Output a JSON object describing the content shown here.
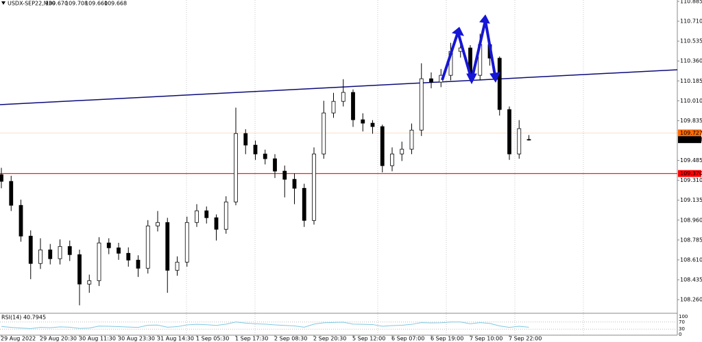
{
  "chart_data": {
    "type": "candlestick",
    "title": "USDX-SEP22,M30",
    "quote": [
      "109.670",
      "109.708",
      "109.660",
      "109.668"
    ],
    "categories": [
      "29 Aug 2022",
      null,
      null,
      null,
      "29 Aug 20:30",
      null,
      null,
      null,
      "30 Aug 11:30",
      null,
      null,
      null,
      "30 Aug 23:30",
      null,
      null,
      null,
      "31 Aug 14:30",
      null,
      null,
      null,
      "1 Sep 05:30",
      null,
      null,
      null,
      "1 Sep 17:30",
      null,
      null,
      null,
      "2 Sep 08:30",
      null,
      null,
      null,
      "2 Sep 20:30",
      null,
      null,
      null,
      "5 Sep 12:00",
      null,
      null,
      null,
      "6 Sep 07:00",
      null,
      null,
      null,
      "6 Sep 19:00",
      null,
      null,
      null,
      "7 Sep 10:00",
      null,
      null,
      null,
      "7 Sep 22:00",
      null,
      null
    ],
    "open": [
      109.36,
      109.301,
      109.09,
      108.819,
      108.578,
      108.698,
      108.62,
      108.728,
      108.656,
      108.397,
      108.427,
      108.759,
      108.716,
      108.668,
      108.608,
      108.536,
      108.909,
      108.939,
      108.518,
      108.59,
      108.939,
      109.042,
      108.981,
      108.879,
      109.12,
      109.722,
      109.62,
      109.542,
      109.5,
      109.391,
      109.319,
      109.24,
      108.957,
      109.542,
      109.903,
      110.005,
      110.084,
      109.843,
      109.813,
      109.783,
      109.439,
      109.542,
      109.584,
      109.752,
      110.204,
      110.174,
      110.234,
      110.445,
      110.475,
      110.234,
      110.505,
      110.385,
      109.933,
      109.542,
      109.67
    ],
    "high": [
      109.42,
      109.35,
      109.14,
      108.87,
      108.8,
      108.75,
      108.79,
      108.78,
      108.7,
      108.48,
      108.81,
      108.8,
      108.76,
      108.72,
      108.65,
      108.96,
      109.04,
      108.98,
      108.64,
      108.99,
      109.1,
      109.08,
      109.01,
      109.17,
      109.95,
      109.76,
      109.66,
      109.58,
      109.54,
      109.44,
      109.37,
      109.28,
      109.6,
      110.01,
      110.08,
      110.2,
      110.11,
      109.9,
      109.84,
      109.8,
      109.6,
      109.65,
      109.81,
      110.34,
      110.26,
      110.29,
      110.52,
      110.56,
      110.5,
      110.6,
      110.53,
      110.4,
      109.96,
      109.84,
      109.708
    ],
    "low": [
      109.24,
      109.04,
      108.77,
      108.44,
      108.53,
      108.57,
      108.57,
      108.6,
      108.21,
      108.32,
      108.38,
      108.66,
      108.61,
      108.55,
      108.46,
      108.49,
      108.86,
      108.32,
      108.47,
      108.55,
      108.9,
      108.93,
      108.78,
      108.84,
      109.09,
      109.54,
      109.49,
      109.45,
      109.33,
      109.16,
      109.1,
      108.9,
      108.92,
      109.5,
      109.86,
      109.96,
      109.78,
      109.74,
      109.72,
      109.38,
      109.39,
      109.48,
      109.54,
      109.7,
      110.12,
      110.13,
      110.19,
      110.39,
      110.18,
      110.19,
      110.32,
      109.88,
      109.49,
      109.5,
      109.66
    ],
    "close": [
      109.301,
      109.09,
      108.819,
      108.578,
      108.698,
      108.62,
      108.728,
      108.656,
      108.397,
      108.427,
      108.759,
      108.716,
      108.668,
      108.608,
      108.536,
      108.909,
      108.939,
      108.518,
      108.59,
      108.939,
      109.042,
      108.981,
      108.879,
      109.12,
      109.722,
      109.62,
      109.542,
      109.5,
      109.391,
      109.319,
      109.24,
      108.957,
      109.542,
      109.903,
      110.005,
      110.084,
      109.843,
      109.813,
      109.783,
      109.439,
      109.542,
      109.584,
      109.752,
      110.204,
      110.174,
      110.234,
      110.445,
      110.475,
      110.234,
      110.505,
      110.385,
      109.933,
      109.542,
      109.765,
      109.668
    ],
    "ylim": [
      108.146,
      110.897
    ],
    "yticks": [
      110.885,
      {
        "value": 110.71,
        "label": "110.710"
      },
      110.535,
      {
        "value": 110.36,
        "label": "110.360"
      },
      110.185,
      {
        "value": 110.01,
        "label": "110.010"
      },
      109.835,
      109.485,
      {
        "value": 109.31,
        "label": "109.310"
      },
      109.135,
      {
        "value": 108.96,
        "label": "108.960"
      },
      108.785,
      {
        "value": 108.61,
        "label": "108.610"
      },
      108.435,
      {
        "value": 108.26,
        "label": "108.260"
      }
    ],
    "levels": [
      {
        "value": 109.727,
        "label": "109.727",
        "color": "#ff6a00"
      },
      {
        "value": 109.37,
        "label": "109.370",
        "color": "#ff0000"
      },
      {
        "value": 109.668,
        "label": "109.668",
        "color": "#000000"
      }
    ],
    "rsi": {
      "name": "RSI(14) 40.7945",
      "color": "#7ec8e3",
      "values": [
        45,
        40,
        36,
        33,
        40,
        38,
        43,
        41,
        34,
        36,
        47,
        46,
        44,
        42,
        40,
        52,
        53,
        41,
        44,
        54,
        57,
        55,
        51,
        58,
        70,
        64,
        60,
        58,
        54,
        51,
        48,
        41,
        58,
        66,
        68,
        69,
        58,
        57,
        56,
        46,
        50,
        52,
        57,
        67,
        65,
        66,
        70,
        70,
        60,
        67,
        62,
        48,
        40,
        46,
        41
      ],
      "ylim": [
        0,
        100
      ],
      "yticks": [
        100,
        70,
        30,
        0
      ]
    }
  }
}
